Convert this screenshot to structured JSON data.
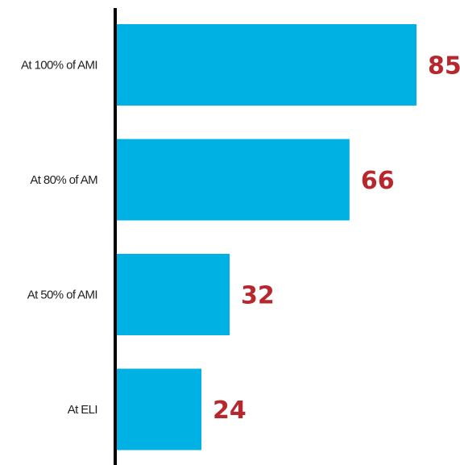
{
  "chart_data": {
    "type": "bar",
    "orientation": "horizontal",
    "categories": [
      "At 100% of AMI",
      "At 80% of AM",
      "At 50% of AMI",
      "At ELI"
    ],
    "values": [
      85,
      66,
      32,
      24
    ],
    "title": "",
    "xlabel": "",
    "ylabel": "",
    "xlim": [
      0,
      85
    ],
    "grid": false,
    "legend": "none"
  },
  "colors": {
    "bar": "#00b2e3",
    "value_label": "#b7282e",
    "category_label": "#231f20",
    "axis": "#000000"
  }
}
